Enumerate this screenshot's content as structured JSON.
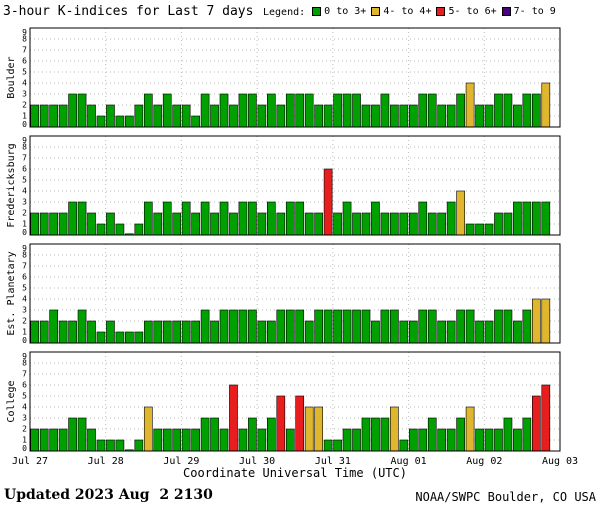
{
  "header": {
    "title": "3-hour K-indices for Last 7 days",
    "legend": {
      "label": "Legend:"
    }
  },
  "footer": {
    "updated": "Updated 2023 Aug  2 2130",
    "source": "NOAA/SWPC Boulder, CO USA"
  },
  "chart_data": {
    "type": "bar",
    "title": "3-hour K-indices for Last 7 days",
    "xlabel": "Coordinate Universal Time (UTC)",
    "x_tick_labels": [
      "Jul 27",
      "Jul 28",
      "Jul 29",
      "Jul 30",
      "Jul 31",
      "Aug 01",
      "Aug 02",
      "Aug 03"
    ],
    "ylim": [
      0,
      9
    ],
    "y_ticks": [
      0,
      1,
      2,
      3,
      4,
      5,
      6,
      7,
      8,
      9
    ],
    "bars_per_day": 8,
    "bar_interval_hours": 3,
    "grid": true,
    "legend_position": "top-right",
    "colors": {
      "green": "#00A000",
      "yellow": "#E0B62E",
      "red": "#E81D1D",
      "purple": "#4B0082"
    },
    "legend": [
      {
        "label": "0 to 3+",
        "color": "green"
      },
      {
        "label": "4- to 4+",
        "color": "yellow"
      },
      {
        "label": "5- to 6+",
        "color": "red"
      },
      {
        "label": "7- to 9",
        "color": "purple"
      }
    ],
    "series": [
      {
        "name": "Boulder",
        "values": [
          2,
          2,
          2,
          2,
          3,
          3,
          2,
          1,
          2,
          1,
          1,
          2,
          3,
          2,
          3,
          2,
          2,
          1,
          3,
          2,
          3,
          2,
          3,
          3,
          2,
          3,
          2,
          3,
          3,
          3,
          2,
          2,
          3,
          3,
          3,
          2,
          2,
          3,
          2,
          2,
          2,
          3,
          3,
          2,
          2,
          3,
          4,
          2,
          2,
          3,
          3,
          2,
          3,
          3,
          4
        ]
      },
      {
        "name": "Fredericksburg",
        "values": [
          2,
          2,
          2,
          2,
          3,
          3,
          2,
          1,
          2,
          1,
          0,
          1,
          3,
          2,
          3,
          2,
          3,
          2,
          3,
          2,
          3,
          2,
          3,
          3,
          2,
          3,
          2,
          3,
          3,
          2,
          2,
          6,
          2,
          3,
          2,
          2,
          3,
          2,
          2,
          2,
          2,
          3,
          2,
          2,
          3,
          4,
          1,
          1,
          1,
          2,
          2,
          3,
          3,
          3,
          3
        ]
      },
      {
        "name": "Est. Planetary",
        "values": [
          2,
          2,
          3,
          2,
          2,
          3,
          2,
          1,
          2,
          1,
          1,
          1,
          2,
          2,
          2,
          2,
          2,
          2,
          3,
          2,
          3,
          3,
          3,
          3,
          2,
          2,
          3,
          3,
          3,
          2,
          3,
          3,
          3,
          3,
          3,
          3,
          2,
          3,
          3,
          2,
          2,
          3,
          3,
          2,
          2,
          3,
          3,
          2,
          2,
          3,
          3,
          2,
          3,
          4,
          4
        ]
      },
      {
        "name": "College",
        "values": [
          2,
          2,
          2,
          2,
          3,
          3,
          2,
          1,
          1,
          1,
          0,
          1,
          4,
          2,
          2,
          2,
          2,
          2,
          3,
          3,
          2,
          6,
          2,
          3,
          2,
          3,
          5,
          2,
          5,
          4,
          4,
          1,
          1,
          2,
          2,
          3,
          3,
          3,
          4,
          1,
          2,
          2,
          3,
          2,
          2,
          3,
          4,
          2,
          2,
          2,
          3,
          2,
          3,
          5,
          6
        ]
      }
    ]
  }
}
